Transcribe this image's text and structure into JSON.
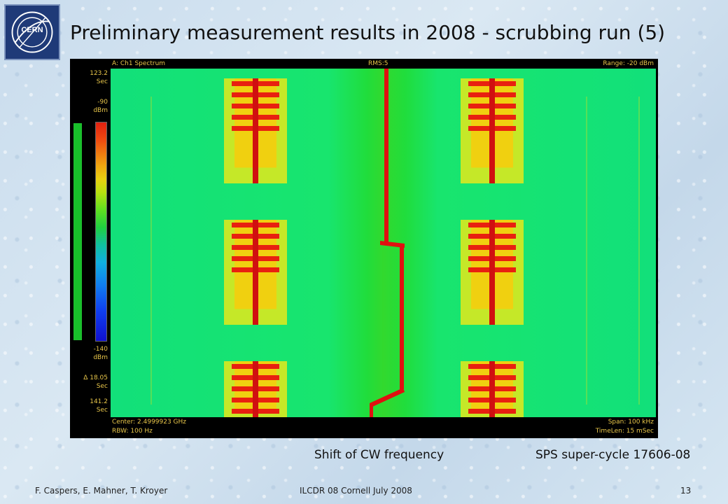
{
  "logo": {
    "text": "CERN"
  },
  "slide": {
    "title": "Preliminary measurement results in 2008 - scrubbing run (5)",
    "slide_number": "13"
  },
  "instrument": {
    "header_left": "A: Ch1 Spectrum",
    "header_center": "RMS:5",
    "header_right": "Range: -20 dBm",
    "time_top_value": "123.2",
    "time_top_unit": "Sec",
    "level_top_value": "-90",
    "level_top_unit": "dBm",
    "level_bottom_value": "-140",
    "level_bottom_unit": "dBm",
    "delta_value": "Δ 18.05",
    "delta_unit": "Sec",
    "time_bottom_value": "141.2",
    "time_bottom_unit": "Sec",
    "footer_center": "Center: 2.4999923 GHz",
    "footer_rbw": "RBW: 100  Hz",
    "footer_span": "Span: 100 kHz",
    "footer_timelen": "TimeLen: 15 mSec"
  },
  "captions": {
    "left": "Shift of CW frequency",
    "right": "SPS super-cycle 17606-08"
  },
  "footer": {
    "authors": "F. Caspers, E. Mahner, T. Kroyer",
    "event": "ILCDR 08 Cornell July 2008"
  },
  "colors": {
    "screen_bg": "#000000",
    "label_yellow": "#e8c64a",
    "trace_red": "#e01010",
    "background_green": "#12e07a",
    "band_yellow": "#f0e020"
  }
}
